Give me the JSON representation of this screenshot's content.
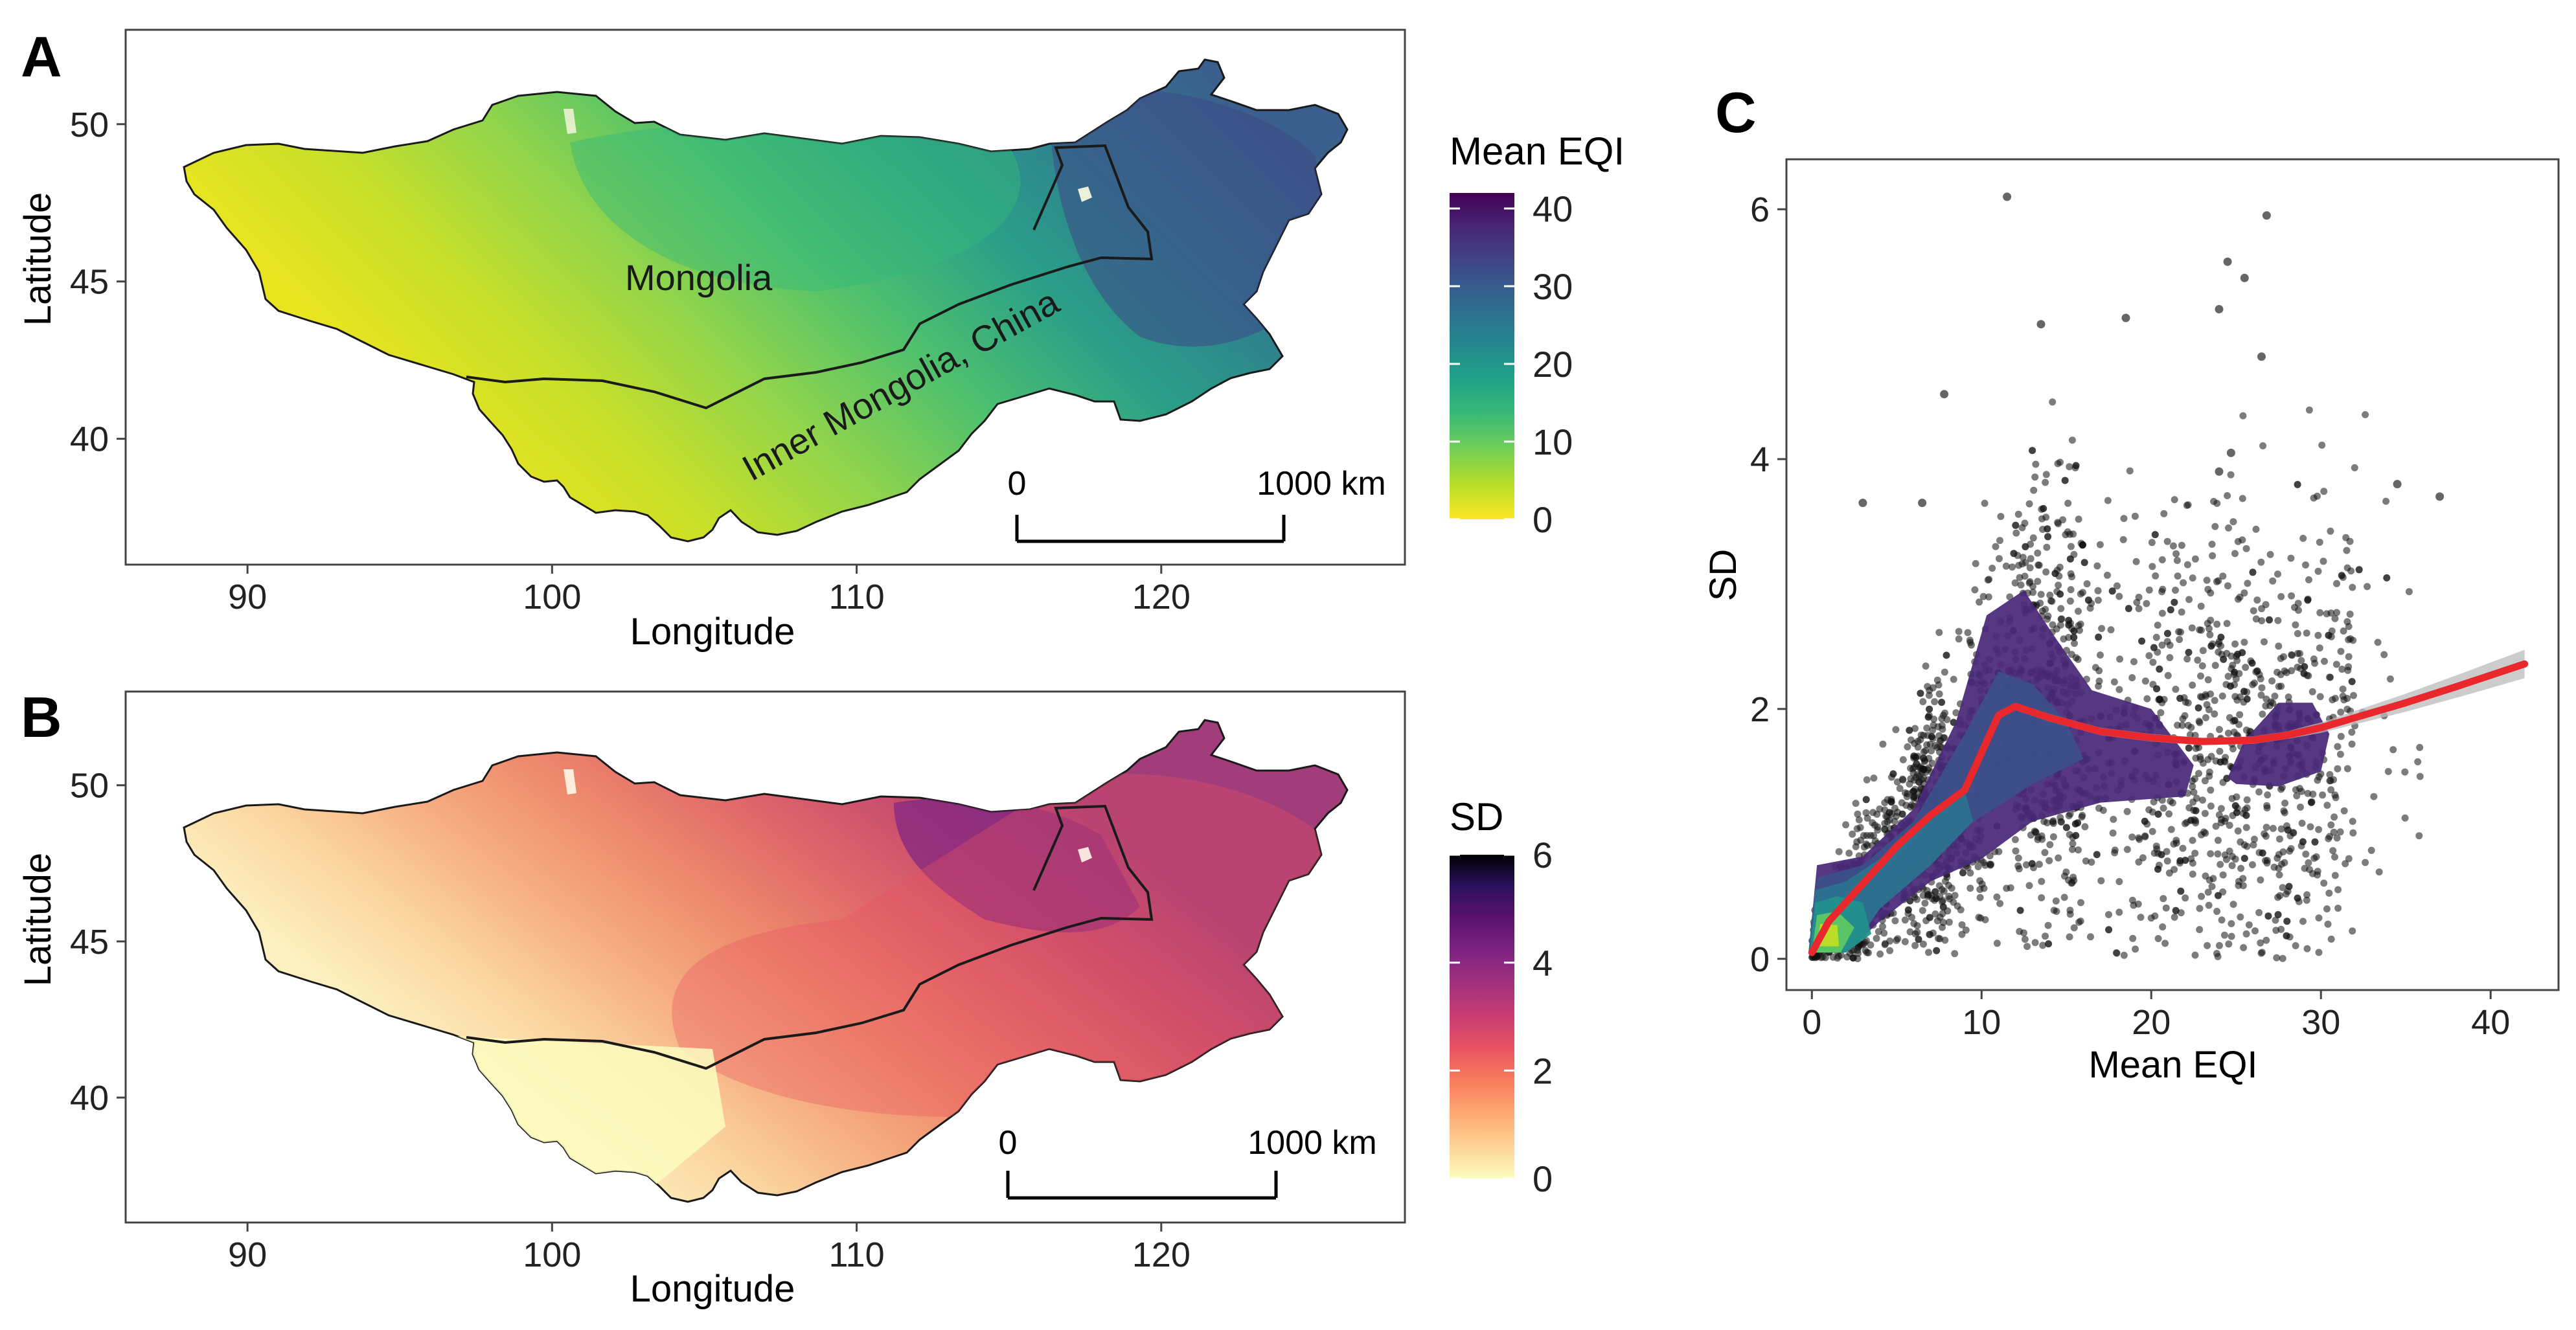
{
  "figure": {
    "panels": {
      "a": {
        "label": "A",
        "xlabel": "Longitude",
        "ylabel": "Latitude",
        "legend_title": "Mean EQI",
        "region_labels": [
          "Mongolia",
          "Inner Mongolia, China"
        ],
        "scalebar": {
          "start": "0",
          "end": "1000 km"
        }
      },
      "b": {
        "label": "B",
        "xlabel": "Longitude",
        "ylabel": "Latitude",
        "legend_title": "SD",
        "scalebar": {
          "start": "0",
          "end": "1000 km"
        }
      },
      "c": {
        "label": "C"
      }
    }
  },
  "colors": {
    "viridis": [
      "#fde725",
      "#b5de2b",
      "#6ece58",
      "#35b779",
      "#1f9e89",
      "#26828e",
      "#31688e",
      "#3e4989",
      "#482878",
      "#440154"
    ],
    "magma": [
      "#fcfdbf",
      "#fed395",
      "#fea973",
      "#fa7d5e",
      "#e95462",
      "#c83e73",
      "#a3307e",
      "#7e2482",
      "#5c126e",
      "#2d1160",
      "#000004"
    ],
    "scatter_points": "#111111",
    "smooth_line": "#e8282d",
    "confidence_band": "#bbbbbb",
    "boundary": "#1a1a1a"
  },
  "chart_data": [
    {
      "type": "heatmap",
      "panel": "A",
      "title": "",
      "xlabel": "Longitude",
      "ylabel": "Latitude",
      "x_ticks": [
        90,
        100,
        110,
        120
      ],
      "y_ticks": [
        40,
        45,
        50
      ],
      "xlim": [
        86,
        128
      ],
      "ylim": [
        36,
        53
      ],
      "legend_title": "Mean EQI",
      "colorbar_ticks": [
        0,
        10,
        20,
        30,
        40
      ],
      "colorbar_range": [
        0,
        42
      ],
      "colormap": "viridis",
      "annotations": [
        "Mongolia",
        "Inner Mongolia, China"
      ],
      "scalebar": "0 – 1000 km"
    },
    {
      "type": "heatmap",
      "panel": "B",
      "title": "",
      "xlabel": "Longitude",
      "ylabel": "Latitude",
      "x_ticks": [
        90,
        100,
        110,
        120
      ],
      "y_ticks": [
        40,
        45,
        50
      ],
      "xlim": [
        86,
        128
      ],
      "ylim": [
        36,
        53
      ],
      "legend_title": "SD",
      "colorbar_ticks": [
        0,
        2,
        4,
        6
      ],
      "colorbar_range": [
        0,
        6
      ],
      "colormap": "magma",
      "scalebar": "0 – 1000 km"
    },
    {
      "type": "scatter",
      "panel": "C",
      "title": "",
      "xlabel": "Mean EQI",
      "ylabel": "SD",
      "x_ticks": [
        0,
        10,
        20,
        30,
        40
      ],
      "y_ticks": [
        0,
        2,
        4,
        6
      ],
      "xlim": [
        -1.5,
        44
      ],
      "ylim": [
        -0.25,
        6.4
      ],
      "outliers": [
        [
          11.5,
          6.1
        ],
        [
          26.8,
          5.95
        ],
        [
          24.5,
          5.58
        ],
        [
          25.5,
          5.45
        ],
        [
          13.5,
          5.08
        ],
        [
          18.5,
          5.13
        ],
        [
          24.0,
          5.2
        ],
        [
          26.5,
          4.82
        ],
        [
          7.8,
          4.52
        ],
        [
          24.7,
          4.05
        ],
        [
          3.0,
          3.65
        ],
        [
          6.5,
          3.65
        ],
        [
          34.5,
          3.8
        ],
        [
          37.0,
          3.7
        ],
        [
          24.0,
          3.9
        ]
      ],
      "smooth_line": {
        "x": [
          0,
          1,
          2,
          3,
          5,
          7,
          9,
          10,
          11,
          12,
          14,
          17,
          20,
          23,
          26,
          28,
          30,
          32,
          35,
          38,
          40,
          42
        ],
        "y": [
          0.05,
          0.3,
          0.45,
          0.6,
          0.9,
          1.15,
          1.35,
          1.65,
          1.95,
          2.02,
          1.93,
          1.82,
          1.77,
          1.74,
          1.75,
          1.79,
          1.85,
          1.93,
          2.05,
          2.18,
          2.27,
          2.36
        ]
      },
      "density_regions": [
        {
          "level": 1,
          "polygon": [
            [
              -0.2,
              0.05
            ],
            [
              0.3,
              0.75
            ],
            [
              3,
              0.82
            ],
            [
              6,
              1.2
            ],
            [
              8.5,
              1.9
            ],
            [
              10.3,
              2.75
            ],
            [
              12.5,
              2.95
            ],
            [
              14.2,
              2.6
            ],
            [
              16.5,
              2.15
            ],
            [
              20,
              2.0
            ],
            [
              22.5,
              1.55
            ],
            [
              22,
              1.3
            ],
            [
              17,
              1.25
            ],
            [
              13,
              1.1
            ],
            [
              10,
              0.8
            ],
            [
              7,
              0.62
            ],
            [
              4,
              0.3
            ],
            [
              2,
              0.05
            ]
          ]
        },
        {
          "level": 2,
          "polygon": [
            [
              -0.2,
              0.05
            ],
            [
              0.3,
              0.65
            ],
            [
              3,
              0.75
            ],
            [
              6,
              1.1
            ],
            [
              9,
              1.8
            ],
            [
              11,
              2.3
            ],
            [
              13,
              2.2
            ],
            [
              15,
              1.9
            ],
            [
              16,
              1.6
            ],
            [
              13,
              1.4
            ],
            [
              9,
              1.05
            ],
            [
              6,
              0.7
            ],
            [
              3,
              0.25
            ],
            [
              1.5,
              0.05
            ]
          ]
        },
        {
          "level": 3,
          "polygon": [
            [
              -0.2,
              0.05
            ],
            [
              0.2,
              0.55
            ],
            [
              2,
              0.62
            ],
            [
              4,
              0.8
            ],
            [
              6.5,
              1.05
            ],
            [
              9,
              1.35
            ],
            [
              9.5,
              1.1
            ],
            [
              7,
              0.75
            ],
            [
              4,
              0.4
            ],
            [
              2.5,
              0.1
            ],
            [
              1,
              0.05
            ]
          ]
        },
        {
          "level": 4,
          "polygon": [
            [
              -0.1,
              0.05
            ],
            [
              0.2,
              0.45
            ],
            [
              1.5,
              0.5
            ],
            [
              3,
              0.45
            ],
            [
              3.5,
              0.2
            ],
            [
              2,
              0.05
            ]
          ]
        },
        {
          "level": 5,
          "polygon": [
            [
              0,
              0.05
            ],
            [
              0.3,
              0.35
            ],
            [
              1.5,
              0.38
            ],
            [
              2.5,
              0.25
            ],
            [
              1.7,
              0.05
            ]
          ]
        },
        {
          "level": 6,
          "polygon": [
            [
              0.3,
              0.1
            ],
            [
              0.5,
              0.28
            ],
            [
              1.5,
              0.27
            ],
            [
              1.6,
              0.1
            ]
          ]
        },
        {
          "level": 1,
          "polygon": [
            [
              24.5,
              1.45
            ],
            [
              25.5,
              1.75
            ],
            [
              27.5,
              2.05
            ],
            [
              29.5,
              2.05
            ],
            [
              30.5,
              1.8
            ],
            [
              30,
              1.5
            ],
            [
              27.5,
              1.38
            ],
            [
              25,
              1.4
            ]
          ]
        }
      ]
    }
  ]
}
